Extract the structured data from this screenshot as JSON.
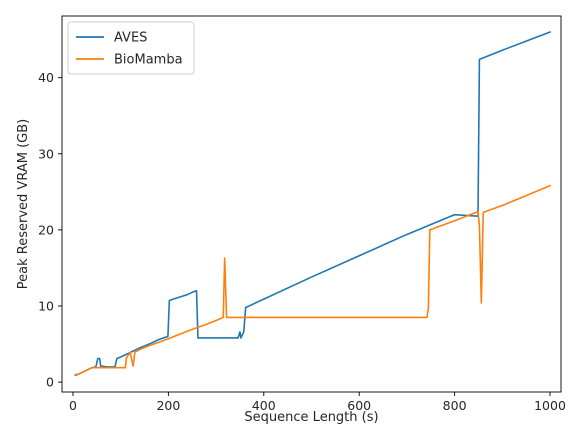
{
  "chart_data": {
    "type": "line",
    "title": "",
    "xlabel": "Sequence Length (s)",
    "ylabel": "Peak Reserved VRAM (GB)",
    "xlim": [
      -23,
      1023
    ],
    "ylim": [
      -1.3,
      48.1
    ],
    "xticks": [
      0,
      200,
      400,
      600,
      800,
      1000
    ],
    "yticks": [
      0,
      10,
      20,
      30,
      40
    ],
    "grid": false,
    "legend_position": "top-left",
    "series": [
      {
        "name": "AVES",
        "color": "#1f77b4",
        "x": [
          5,
          10,
          20,
          30,
          40,
          48,
          52,
          56,
          58,
          62,
          70,
          80,
          88,
          92,
          100,
          120,
          140,
          160,
          180,
          199,
          202,
          210,
          220,
          230,
          240,
          250,
          259,
          262,
          280,
          300,
          320,
          340,
          346,
          350,
          352,
          358,
          362,
          400,
          500,
          600,
          700,
          800,
          849,
          852,
          900,
          950,
          1000
        ],
        "y": [
          0.9,
          1.0,
          1.3,
          1.6,
          1.9,
          2.0,
          3.1,
          3.1,
          2.1,
          2.1,
          2.0,
          2.0,
          2.0,
          3.1,
          3.3,
          3.9,
          4.5,
          5.0,
          5.6,
          6.0,
          10.7,
          10.9,
          11.1,
          11.3,
          11.5,
          11.8,
          12.0,
          5.8,
          5.8,
          5.8,
          5.8,
          5.8,
          5.8,
          6.6,
          5.8,
          6.6,
          9.8,
          10.9,
          13.8,
          16.6,
          19.4,
          22.0,
          21.8,
          42.4,
          43.6,
          44.8,
          46.0
        ]
      },
      {
        "name": "BioMamba",
        "color": "#ff7f0e",
        "x": [
          5,
          10,
          20,
          30,
          40,
          50,
          60,
          70,
          80,
          90,
          100,
          110,
          112,
          120,
          126,
          130,
          136,
          140,
          160,
          200,
          240,
          280,
          300,
          315,
          318,
          322,
          330,
          400,
          500,
          600,
          700,
          742,
          745,
          748,
          800,
          849,
          852,
          856,
          860,
          900,
          950,
          1000
        ],
        "y": [
          1.0,
          1.0,
          1.3,
          1.6,
          1.9,
          1.9,
          1.9,
          1.9,
          1.9,
          1.9,
          1.9,
          1.9,
          3.2,
          3.9,
          2.1,
          4.0,
          4.1,
          4.3,
          4.8,
          5.7,
          6.7,
          7.6,
          8.1,
          8.5,
          16.3,
          8.5,
          8.5,
          8.5,
          8.5,
          8.5,
          8.5,
          8.5,
          9.7,
          20.0,
          21.2,
          22.4,
          20.5,
          10.4,
          22.3,
          23.2,
          24.5,
          25.8
        ]
      }
    ]
  }
}
